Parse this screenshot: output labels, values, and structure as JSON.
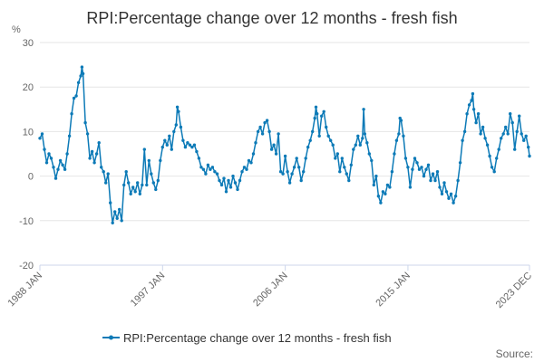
{
  "colors": {
    "series": "#0c7ab7",
    "grid": "#e6e6e6",
    "text": "#333333"
  },
  "chart_data": {
    "type": "line",
    "title": "RPI:Percentage change over 12 months - fresh fish",
    "unit_label": "%",
    "source_label": "Source:",
    "ylim": [
      -20,
      30
    ],
    "y_ticks": [
      30,
      20,
      10,
      0,
      -10,
      -20
    ],
    "x_ticks": [
      "1988 JAN",
      "1997 JAN",
      "2006 JAN",
      "2015 JAN",
      "2023 DEC"
    ],
    "x_tick_values": [
      1988.0,
      1997.0,
      2006.0,
      2015.0,
      2023.917
    ],
    "xlim": [
      1988.0,
      2023.917
    ],
    "grid": true,
    "legend_position": "bottom",
    "series": [
      {
        "name": "RPI:Percentage change over 12 months - fresh fish",
        "points": [
          [
            "1988-01",
            8.5
          ],
          [
            "1988-03",
            9.5
          ],
          [
            "1988-05",
            6.0
          ],
          [
            "1988-07",
            3.0
          ],
          [
            "1988-09",
            5.0
          ],
          [
            "1988-11",
            4.0
          ],
          [
            "1989-01",
            2.0
          ],
          [
            "1989-03",
            -0.5
          ],
          [
            "1989-05",
            1.5
          ],
          [
            "1989-07",
            3.5
          ],
          [
            "1989-09",
            2.5
          ],
          [
            "1989-11",
            1.5
          ],
          [
            "1990-01",
            5.0
          ],
          [
            "1990-03",
            9.0
          ],
          [
            "1990-05",
            14.0
          ],
          [
            "1990-07",
            17.5
          ],
          [
            "1990-09",
            18.0
          ],
          [
            "1990-11",
            21.0
          ],
          [
            "1991-01",
            22.5
          ],
          [
            "1991-02",
            24.5
          ],
          [
            "1991-03",
            23.0
          ],
          [
            "1991-05",
            12.0
          ],
          [
            "1991-07",
            9.5
          ],
          [
            "1991-09",
            4.0
          ],
          [
            "1991-11",
            5.5
          ],
          [
            "1992-01",
            3.0
          ],
          [
            "1992-03",
            5.0
          ],
          [
            "1992-05",
            7.5
          ],
          [
            "1992-07",
            2.0
          ],
          [
            "1992-09",
            1.0
          ],
          [
            "1992-11",
            -1.5
          ],
          [
            "1993-01",
            0.5
          ],
          [
            "1993-03",
            -6.0
          ],
          [
            "1993-05",
            -10.5
          ],
          [
            "1993-07",
            -8.0
          ],
          [
            "1993-09",
            -9.5
          ],
          [
            "1993-11",
            -7.5
          ],
          [
            "1994-01",
            -10.0
          ],
          [
            "1994-03",
            -2.0
          ],
          [
            "1994-05",
            1.0
          ],
          [
            "1994-07",
            -1.5
          ],
          [
            "1994-09",
            -4.0
          ],
          [
            "1994-11",
            -2.5
          ],
          [
            "1995-01",
            -3.5
          ],
          [
            "1995-03",
            -1.5
          ],
          [
            "1995-05",
            -4.0
          ],
          [
            "1995-07",
            -2.0
          ],
          [
            "1995-09",
            6.0
          ],
          [
            "1995-11",
            -2.0
          ],
          [
            "1996-01",
            3.5
          ],
          [
            "1996-03",
            0.5
          ],
          [
            "1996-05",
            -1.5
          ],
          [
            "1996-07",
            -3.0
          ],
          [
            "1996-09",
            -1.0
          ],
          [
            "1996-11",
            3.5
          ],
          [
            "1997-01",
            6.5
          ],
          [
            "1997-03",
            8.0
          ],
          [
            "1997-05",
            7.0
          ],
          [
            "1997-07",
            9.0
          ],
          [
            "1997-09",
            6.0
          ],
          [
            "1997-11",
            10.0
          ],
          [
            "1998-01",
            11.5
          ],
          [
            "1998-02",
            15.5
          ],
          [
            "1998-03",
            14.5
          ],
          [
            "1998-05",
            11.0
          ],
          [
            "1998-07",
            8.0
          ],
          [
            "1998-09",
            6.5
          ],
          [
            "1998-11",
            7.5
          ],
          [
            "1999-01",
            7.0
          ],
          [
            "1999-03",
            6.5
          ],
          [
            "1999-05",
            7.0
          ],
          [
            "1999-07",
            5.5
          ],
          [
            "1999-09",
            4.0
          ],
          [
            "1999-11",
            2.0
          ],
          [
            "2000-01",
            1.5
          ],
          [
            "2000-03",
            0.5
          ],
          [
            "2000-05",
            2.5
          ],
          [
            "2000-07",
            1.5
          ],
          [
            "2000-09",
            2.0
          ],
          [
            "2000-11",
            1.0
          ],
          [
            "2001-01",
            0.5
          ],
          [
            "2001-03",
            -1.0
          ],
          [
            "2001-05",
            -2.0
          ],
          [
            "2001-07",
            -0.5
          ],
          [
            "2001-09",
            -3.5
          ],
          [
            "2001-11",
            -1.0
          ],
          [
            "2002-01",
            -2.5
          ],
          [
            "2002-03",
            0.0
          ],
          [
            "2002-05",
            -1.5
          ],
          [
            "2002-07",
            -3.0
          ],
          [
            "2002-09",
            -1.0
          ],
          [
            "2002-11",
            1.0
          ],
          [
            "2003-01",
            2.0
          ],
          [
            "2003-03",
            1.5
          ],
          [
            "2003-05",
            3.5
          ],
          [
            "2003-07",
            3.0
          ],
          [
            "2003-09",
            5.0
          ],
          [
            "2003-11",
            7.5
          ],
          [
            "2004-01",
            10.0
          ],
          [
            "2004-03",
            11.0
          ],
          [
            "2004-05",
            9.5
          ],
          [
            "2004-07",
            12.0
          ],
          [
            "2004-09",
            12.5
          ],
          [
            "2004-11",
            10.0
          ],
          [
            "2005-01",
            6.0
          ],
          [
            "2005-03",
            7.0
          ],
          [
            "2005-05",
            5.0
          ],
          [
            "2005-07",
            9.5
          ],
          [
            "2005-09",
            1.0
          ],
          [
            "2005-11",
            0.5
          ],
          [
            "2006-01",
            4.5
          ],
          [
            "2006-03",
            1.0
          ],
          [
            "2006-05",
            -1.5
          ],
          [
            "2006-07",
            0.5
          ],
          [
            "2006-09",
            2.0
          ],
          [
            "2006-11",
            4.0
          ],
          [
            "2007-01",
            2.0
          ],
          [
            "2007-03",
            -1.0
          ],
          [
            "2007-05",
            1.0
          ],
          [
            "2007-07",
            4.0
          ],
          [
            "2007-09",
            6.5
          ],
          [
            "2007-11",
            8.0
          ],
          [
            "2008-01",
            10.0
          ],
          [
            "2008-03",
            13.0
          ],
          [
            "2008-04",
            15.5
          ],
          [
            "2008-05",
            14.0
          ],
          [
            "2008-07",
            9.0
          ],
          [
            "2008-09",
            13.5
          ],
          [
            "2008-11",
            14.5
          ],
          [
            "2009-01",
            11.0
          ],
          [
            "2009-03",
            9.0
          ],
          [
            "2009-05",
            8.0
          ],
          [
            "2009-07",
            7.0
          ],
          [
            "2009-09",
            4.0
          ],
          [
            "2009-11",
            5.0
          ],
          [
            "2010-01",
            1.0
          ],
          [
            "2010-03",
            4.0
          ],
          [
            "2010-05",
            2.0
          ],
          [
            "2010-07",
            0.5
          ],
          [
            "2010-09",
            -1.0
          ],
          [
            "2010-11",
            2.5
          ],
          [
            "2011-01",
            6.0
          ],
          [
            "2011-03",
            7.0
          ],
          [
            "2011-05",
            9.0
          ],
          [
            "2011-07",
            7.0
          ],
          [
            "2011-09",
            8.5
          ],
          [
            "2011-10",
            15.0
          ],
          [
            "2011-11",
            9.5
          ],
          [
            "2012-01",
            7.5
          ],
          [
            "2012-03",
            5.0
          ],
          [
            "2012-05",
            3.5
          ],
          [
            "2012-07",
            -2.0
          ],
          [
            "2012-09",
            0.0
          ],
          [
            "2012-11",
            -4.5
          ],
          [
            "2013-01",
            -6.0
          ],
          [
            "2013-03",
            -3.5
          ],
          [
            "2013-05",
            -4.0
          ],
          [
            "2013-07",
            -2.0
          ],
          [
            "2013-09",
            -2.5
          ],
          [
            "2013-11",
            1.0
          ],
          [
            "2014-01",
            5.0
          ],
          [
            "2014-03",
            8.0
          ],
          [
            "2014-05",
            9.5
          ],
          [
            "2014-06",
            13.0
          ],
          [
            "2014-07",
            12.5
          ],
          [
            "2014-09",
            9.0
          ],
          [
            "2014-11",
            4.0
          ],
          [
            "2015-01",
            2.0
          ],
          [
            "2015-03",
            -2.5
          ],
          [
            "2015-05",
            1.5
          ],
          [
            "2015-07",
            4.0
          ],
          [
            "2015-09",
            3.0
          ],
          [
            "2015-11",
            1.5
          ],
          [
            "2016-01",
            2.0
          ],
          [
            "2016-03",
            0.0
          ],
          [
            "2016-05",
            1.5
          ],
          [
            "2016-07",
            2.5
          ],
          [
            "2016-09",
            -1.0
          ],
          [
            "2016-11",
            0.5
          ],
          [
            "2017-01",
            -1.0
          ],
          [
            "2017-03",
            1.0
          ],
          [
            "2017-05",
            -2.5
          ],
          [
            "2017-07",
            -4.0
          ],
          [
            "2017-09",
            -1.5
          ],
          [
            "2017-11",
            -3.5
          ],
          [
            "2018-01",
            -5.0
          ],
          [
            "2018-03",
            -4.0
          ],
          [
            "2018-05",
            -6.0
          ],
          [
            "2018-07",
            -4.5
          ],
          [
            "2018-09",
            -1.0
          ],
          [
            "2018-11",
            3.0
          ],
          [
            "2019-01",
            8.0
          ],
          [
            "2019-03",
            10.0
          ],
          [
            "2019-05",
            14.0
          ],
          [
            "2019-07",
            16.0
          ],
          [
            "2019-09",
            17.0
          ],
          [
            "2019-10",
            18.5
          ],
          [
            "2019-11",
            15.0
          ],
          [
            "2020-01",
            12.0
          ],
          [
            "2020-03",
            14.0
          ],
          [
            "2020-05",
            9.5
          ],
          [
            "2020-07",
            11.0
          ],
          [
            "2020-09",
            8.5
          ],
          [
            "2020-11",
            7.0
          ],
          [
            "2021-01",
            4.5
          ],
          [
            "2021-03",
            2.0
          ],
          [
            "2021-05",
            1.0
          ],
          [
            "2021-07",
            4.0
          ],
          [
            "2021-09",
            6.0
          ],
          [
            "2021-11",
            8.5
          ],
          [
            "2022-01",
            9.5
          ],
          [
            "2022-03",
            11.0
          ],
          [
            "2022-05",
            9.5
          ],
          [
            "2022-07",
            14.0
          ],
          [
            "2022-09",
            12.0
          ],
          [
            "2022-11",
            6.0
          ],
          [
            "2023-01",
            10.0
          ],
          [
            "2023-03",
            13.5
          ],
          [
            "2023-05",
            9.5
          ],
          [
            "2023-07",
            8.0
          ],
          [
            "2023-09",
            9.0
          ],
          [
            "2023-11",
            6.5
          ],
          [
            "2023-12",
            4.5
          ]
        ]
      }
    ]
  }
}
